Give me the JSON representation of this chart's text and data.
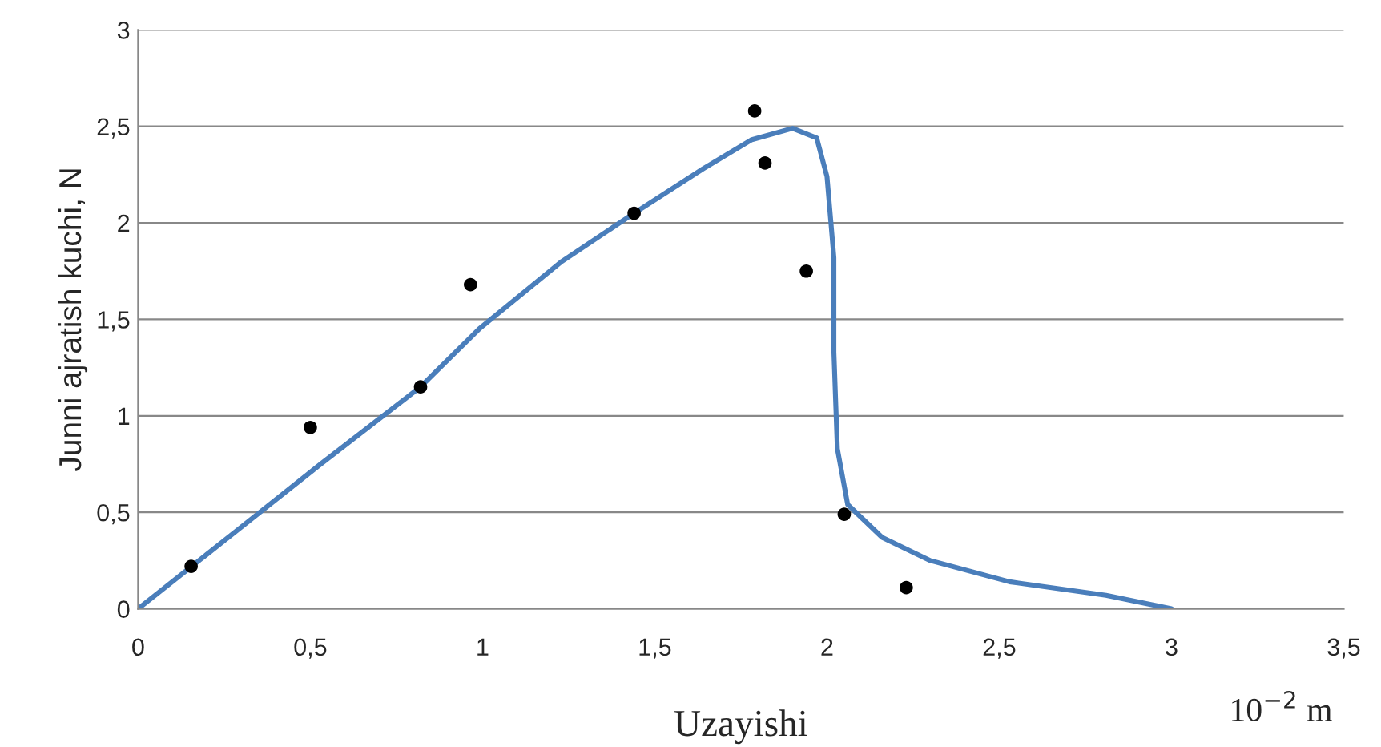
{
  "chart_data": {
    "type": "scatter",
    "xlabel": "Uzayishi",
    "ylabel": "Junni ajratish kuchi, N",
    "annotations": [
      "10$^{−2}$ m"
    ],
    "xlim": [
      0,
      3.5
    ],
    "ylim": [
      0,
      3
    ],
    "xticks": [
      0,
      {
        "value": 0.5,
        "label": "0,5"
      },
      1,
      {
        "value": 1.5,
        "label": "1,5"
      },
      2,
      {
        "value": 2.5,
        "label": "2,5"
      },
      3,
      {
        "value": 3.5,
        "label": "3,5"
      }
    ],
    "yticks": [
      0,
      {
        "value": 0.5,
        "label": "0,5"
      },
      1,
      {
        "value": 1.5,
        "label": "1,5"
      },
      2,
      {
        "value": 2.5,
        "label": "2,5"
      },
      3
    ],
    "grid": "y",
    "legend": false,
    "series": [
      {
        "color": "#000000",
        "marker": "circle",
        "x": [
          0.154,
          0.5,
          0.82,
          0.965,
          1.44,
          1.79,
          1.82,
          1.94,
          2.05,
          2.23
        ],
        "values": [
          0.22,
          0.94,
          1.15,
          1.68,
          2.05,
          2.58,
          2.31,
          1.75,
          0.49,
          0.11
        ]
      },
      {
        "type": "line",
        "color": "#4a7ebb",
        "marker": "none",
        "line_style": "solid",
        "x": [
          0,
          0.29,
          0.53,
          0.82,
          0.99,
          1.23,
          1.44,
          1.64,
          1.78,
          1.9,
          1.97,
          2.0,
          2.02,
          2.02,
          2.03,
          2.06,
          2.16,
          2.3,
          2.53,
          2.81,
          3.0
        ],
        "values": [
          0,
          0.41,
          0.75,
          1.15,
          1.45,
          1.8,
          2.05,
          2.28,
          2.43,
          2.49,
          2.44,
          2.24,
          1.82,
          1.33,
          0.83,
          0.54,
          0.37,
          0.25,
          0.14,
          0.07,
          0.0
        ]
      }
    ]
  }
}
